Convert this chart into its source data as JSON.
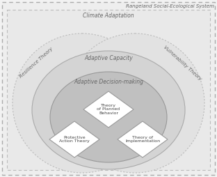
{
  "bg_color": "#f2f2f2",
  "outer_rect_label": "Rangeland Social-Ecological System",
  "climate_adaptation_label": "Climate Adaptation",
  "resilience_label": "Resilience Theory",
  "vulnerability_label": "Vulnerability Theory",
  "adaptive_capacity_label": "Adaptive Capacity",
  "adaptive_decision_label": "Adaptive Decision-making",
  "diamond1_label": "Theory\nof Planned\nBehavior",
  "diamond2_label": "Protective\nAction Theory",
  "diamond3_label": "Theory of\nImplementation",
  "outer_rect_fc": "#eeeeee",
  "climate_oval_fc": "#e8e8e8",
  "resilience_fc": "#e0e0e0",
  "adaptive_capacity_fc": "#d4d4d4",
  "adaptive_decision_fc": "#c0c0c0",
  "diamond_fc": "#ffffff",
  "text_color": "#666666",
  "label_fontsize": 5.5,
  "title_fontsize": 5.0,
  "edge_color": "#aaaaaa",
  "dark_edge_color": "#999999"
}
